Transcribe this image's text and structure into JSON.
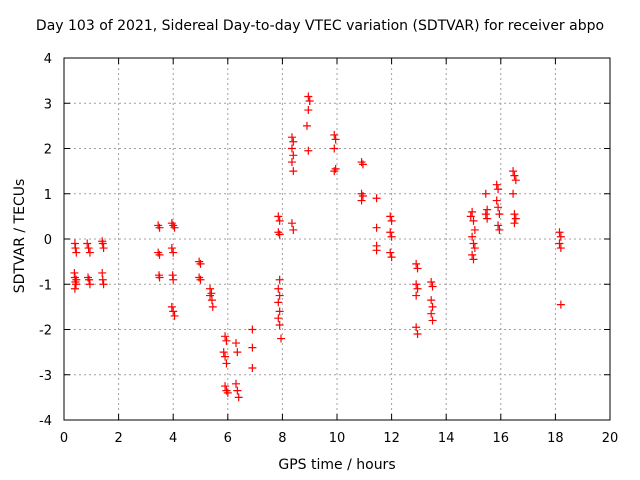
{
  "chart_data": {
    "type": "scatter",
    "title": "Day 103 of 2021, Sidereal Day-to-day VTEC variation (SDTVAR) for receiver abpo",
    "xlabel": "GPS time / hours",
    "ylabel": "SDTVAR / TECUs",
    "xlim": [
      0,
      20
    ],
    "ylim": [
      -4,
      4
    ],
    "xticks": [
      0,
      2,
      4,
      6,
      8,
      10,
      12,
      14,
      16,
      18,
      20
    ],
    "yticks": [
      -4,
      -3,
      -2,
      -1,
      0,
      1,
      2,
      3,
      4
    ],
    "grid": true,
    "marker": "+",
    "color": "#ff0000",
    "series": [
      {
        "name": "SDTVAR",
        "points": [
          [
            0.4,
            -0.1
          ],
          [
            0.42,
            -0.2
          ],
          [
            0.45,
            -0.3
          ],
          [
            0.38,
            -0.75
          ],
          [
            0.4,
            -0.85
          ],
          [
            0.42,
            -0.95
          ],
          [
            0.44,
            -1.0
          ],
          [
            0.4,
            -1.1
          ],
          [
            0.45,
            -0.9
          ],
          [
            0.85,
            -0.1
          ],
          [
            0.9,
            -0.2
          ],
          [
            0.95,
            -0.3
          ],
          [
            0.88,
            -0.85
          ],
          [
            0.92,
            -0.9
          ],
          [
            0.95,
            -1.0
          ],
          [
            1.4,
            -0.05
          ],
          [
            1.42,
            -0.1
          ],
          [
            1.45,
            -0.2
          ],
          [
            1.4,
            -0.75
          ],
          [
            1.42,
            -0.9
          ],
          [
            1.45,
            -1.0
          ],
          [
            3.45,
            0.3
          ],
          [
            3.5,
            0.25
          ],
          [
            3.45,
            -0.3
          ],
          [
            3.5,
            -0.35
          ],
          [
            3.48,
            -0.8
          ],
          [
            3.5,
            -0.85
          ],
          [
            3.95,
            0.35
          ],
          [
            4.0,
            0.3
          ],
          [
            4.05,
            0.25
          ],
          [
            3.95,
            -0.2
          ],
          [
            4.0,
            -0.3
          ],
          [
            3.98,
            -0.8
          ],
          [
            4.0,
            -0.9
          ],
          [
            3.95,
            -1.5
          ],
          [
            4.0,
            -1.6
          ],
          [
            4.05,
            -1.7
          ],
          [
            4.95,
            -0.5
          ],
          [
            5.0,
            -0.55
          ],
          [
            4.95,
            -0.85
          ],
          [
            5.0,
            -0.9
          ],
          [
            5.35,
            -1.1
          ],
          [
            5.4,
            -1.2
          ],
          [
            5.42,
            -1.35
          ],
          [
            5.45,
            -1.5
          ],
          [
            5.35,
            -1.25
          ],
          [
            5.9,
            -2.15
          ],
          [
            5.95,
            -2.25
          ],
          [
            5.85,
            -2.5
          ],
          [
            5.9,
            -2.6
          ],
          [
            5.95,
            -2.75
          ],
          [
            5.9,
            -3.25
          ],
          [
            5.95,
            -3.35
          ],
          [
            6.0,
            -3.4
          ],
          [
            6.3,
            -2.3
          ],
          [
            6.35,
            -2.5
          ],
          [
            6.3,
            -3.2
          ],
          [
            6.35,
            -3.35
          ],
          [
            6.4,
            -3.5
          ],
          [
            6.9,
            -2.0
          ],
          [
            6.9,
            -2.4
          ],
          [
            6.9,
            -2.85
          ],
          [
            7.85,
            0.5
          ],
          [
            7.9,
            0.4
          ],
          [
            7.85,
            0.15
          ],
          [
            7.9,
            0.1
          ],
          [
            7.9,
            -0.9
          ],
          [
            7.85,
            -1.1
          ],
          [
            7.9,
            -1.25
          ],
          [
            7.85,
            -1.4
          ],
          [
            7.9,
            -1.6
          ],
          [
            7.85,
            -1.75
          ],
          [
            7.9,
            -1.9
          ],
          [
            7.95,
            -2.2
          ],
          [
            8.35,
            2.25
          ],
          [
            8.4,
            2.15
          ],
          [
            8.35,
            2.0
          ],
          [
            8.4,
            1.85
          ],
          [
            8.35,
            1.7
          ],
          [
            8.4,
            1.5
          ],
          [
            8.35,
            0.35
          ],
          [
            8.4,
            0.2
          ],
          [
            8.95,
            3.15
          ],
          [
            9.0,
            3.05
          ],
          [
            8.95,
            2.85
          ],
          [
            8.9,
            2.5
          ],
          [
            8.95,
            1.95
          ],
          [
            9.9,
            2.3
          ],
          [
            9.95,
            2.2
          ],
          [
            9.9,
            2.0
          ],
          [
            9.95,
            1.55
          ],
          [
            9.9,
            1.5
          ],
          [
            10.9,
            1.7
          ],
          [
            10.95,
            1.65
          ],
          [
            10.9,
            1.0
          ],
          [
            10.95,
            0.95
          ],
          [
            10.9,
            0.85
          ],
          [
            11.45,
            0.9
          ],
          [
            11.45,
            0.25
          ],
          [
            11.45,
            -0.15
          ],
          [
            11.45,
            -0.25
          ],
          [
            11.95,
            0.5
          ],
          [
            12.0,
            0.4
          ],
          [
            11.95,
            0.15
          ],
          [
            12.0,
            0.05
          ],
          [
            11.95,
            -0.3
          ],
          [
            12.0,
            -0.4
          ],
          [
            12.9,
            -0.55
          ],
          [
            12.95,
            -0.65
          ],
          [
            12.9,
            -1.0
          ],
          [
            12.95,
            -1.1
          ],
          [
            12.9,
            -1.25
          ],
          [
            12.9,
            -1.95
          ],
          [
            12.95,
            -2.1
          ],
          [
            13.45,
            -0.95
          ],
          [
            13.5,
            -1.05
          ],
          [
            13.45,
            -1.35
          ],
          [
            13.5,
            -1.5
          ],
          [
            13.45,
            -1.65
          ],
          [
            13.5,
            -1.8
          ],
          [
            14.9,
            0.5
          ],
          [
            14.95,
            0.6
          ],
          [
            15.0,
            0.4
          ],
          [
            15.05,
            0.2
          ],
          [
            14.95,
            0.05
          ],
          [
            15.0,
            -0.1
          ],
          [
            15.05,
            -0.2
          ],
          [
            14.95,
            -0.35
          ],
          [
            15.0,
            -0.45
          ],
          [
            15.45,
            1.0
          ],
          [
            15.5,
            0.65
          ],
          [
            15.45,
            0.55
          ],
          [
            15.5,
            0.45
          ],
          [
            15.85,
            1.2
          ],
          [
            15.9,
            1.1
          ],
          [
            15.85,
            0.85
          ],
          [
            15.9,
            0.7
          ],
          [
            15.95,
            0.55
          ],
          [
            15.9,
            0.3
          ],
          [
            15.95,
            0.2
          ],
          [
            16.45,
            1.5
          ],
          [
            16.5,
            1.4
          ],
          [
            16.55,
            1.3
          ],
          [
            16.45,
            1.0
          ],
          [
            16.5,
            0.55
          ],
          [
            16.55,
            0.45
          ],
          [
            16.5,
            0.35
          ],
          [
            18.15,
            0.15
          ],
          [
            18.2,
            0.05
          ],
          [
            18.15,
            -0.1
          ],
          [
            18.2,
            -0.2
          ],
          [
            18.2,
            -1.45
          ]
        ]
      }
    ]
  }
}
